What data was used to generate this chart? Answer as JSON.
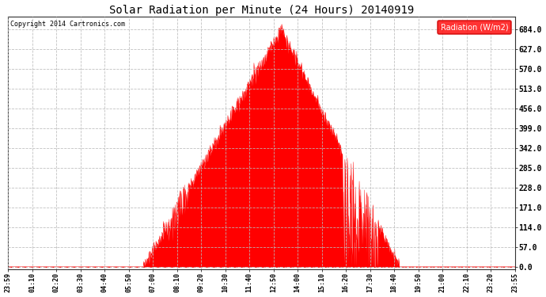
{
  "title": "Solar Radiation per Minute (24 Hours) 20140919",
  "copyright_text": "Copyright 2014 Cartronics.com",
  "legend_label": "Radiation (W/m2)",
  "background_color": "#ffffff",
  "plot_bg_color": "#ffffff",
  "fill_color": "#ff0000",
  "line_color": "#ff0000",
  "grid_color": "#bbbbbb",
  "dashed_line_color": "#ff0000",
  "y_tick_values": [
    0.0,
    57.0,
    114.0,
    171.0,
    228.0,
    285.0,
    342.0,
    399.0,
    456.0,
    513.0,
    570.0,
    627.0,
    684.0
  ],
  "y_max": 720,
  "x_tick_labels": [
    "23:59",
    "01:10",
    "02:20",
    "03:30",
    "04:40",
    "05:50",
    "07:00",
    "08:10",
    "09:20",
    "10:30",
    "11:40",
    "12:50",
    "14:00",
    "15:10",
    "16:20",
    "17:30",
    "18:40",
    "19:50",
    "21:00",
    "22:10",
    "23:20",
    "23:55"
  ],
  "sunrise_minute": 385,
  "sunset_minute": 1110,
  "peak_minute": 775,
  "peak_val": 684.0,
  "num_points": 1440
}
